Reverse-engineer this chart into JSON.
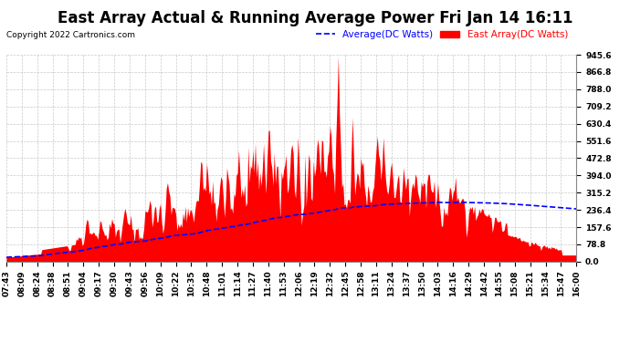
{
  "title": "East Array Actual & Running Average Power Fri Jan 14 16:11",
  "copyright": "Copyright 2022 Cartronics.com",
  "legend_avg": "Average(DC Watts)",
  "legend_east": "East Array(DC Watts)",
  "ymin": 0.0,
  "ymax": 945.6,
  "yticks": [
    0.0,
    78.8,
    157.6,
    236.4,
    315.2,
    394.0,
    472.8,
    551.6,
    630.4,
    709.2,
    788.0,
    866.8,
    945.6
  ],
  "bg_color": "#ffffff",
  "plot_bg_color": "#ffffff",
  "grid_color": "#bbbbbb",
  "bar_color": "red",
  "avg_color": "blue",
  "title_fontsize": 12,
  "tick_fontsize": 6.5,
  "x_labels": [
    "07:43",
    "08:09",
    "08:24",
    "08:38",
    "08:51",
    "09:04",
    "09:17",
    "09:30",
    "09:43",
    "09:56",
    "10:09",
    "10:22",
    "10:35",
    "10:48",
    "11:01",
    "11:14",
    "11:27",
    "11:40",
    "11:53",
    "12:06",
    "12:19",
    "12:32",
    "12:45",
    "12:58",
    "13:11",
    "13:24",
    "13:37",
    "13:50",
    "14:03",
    "14:16",
    "14:29",
    "14:42",
    "14:55",
    "15:08",
    "15:21",
    "15:34",
    "15:47",
    "16:00"
  ]
}
